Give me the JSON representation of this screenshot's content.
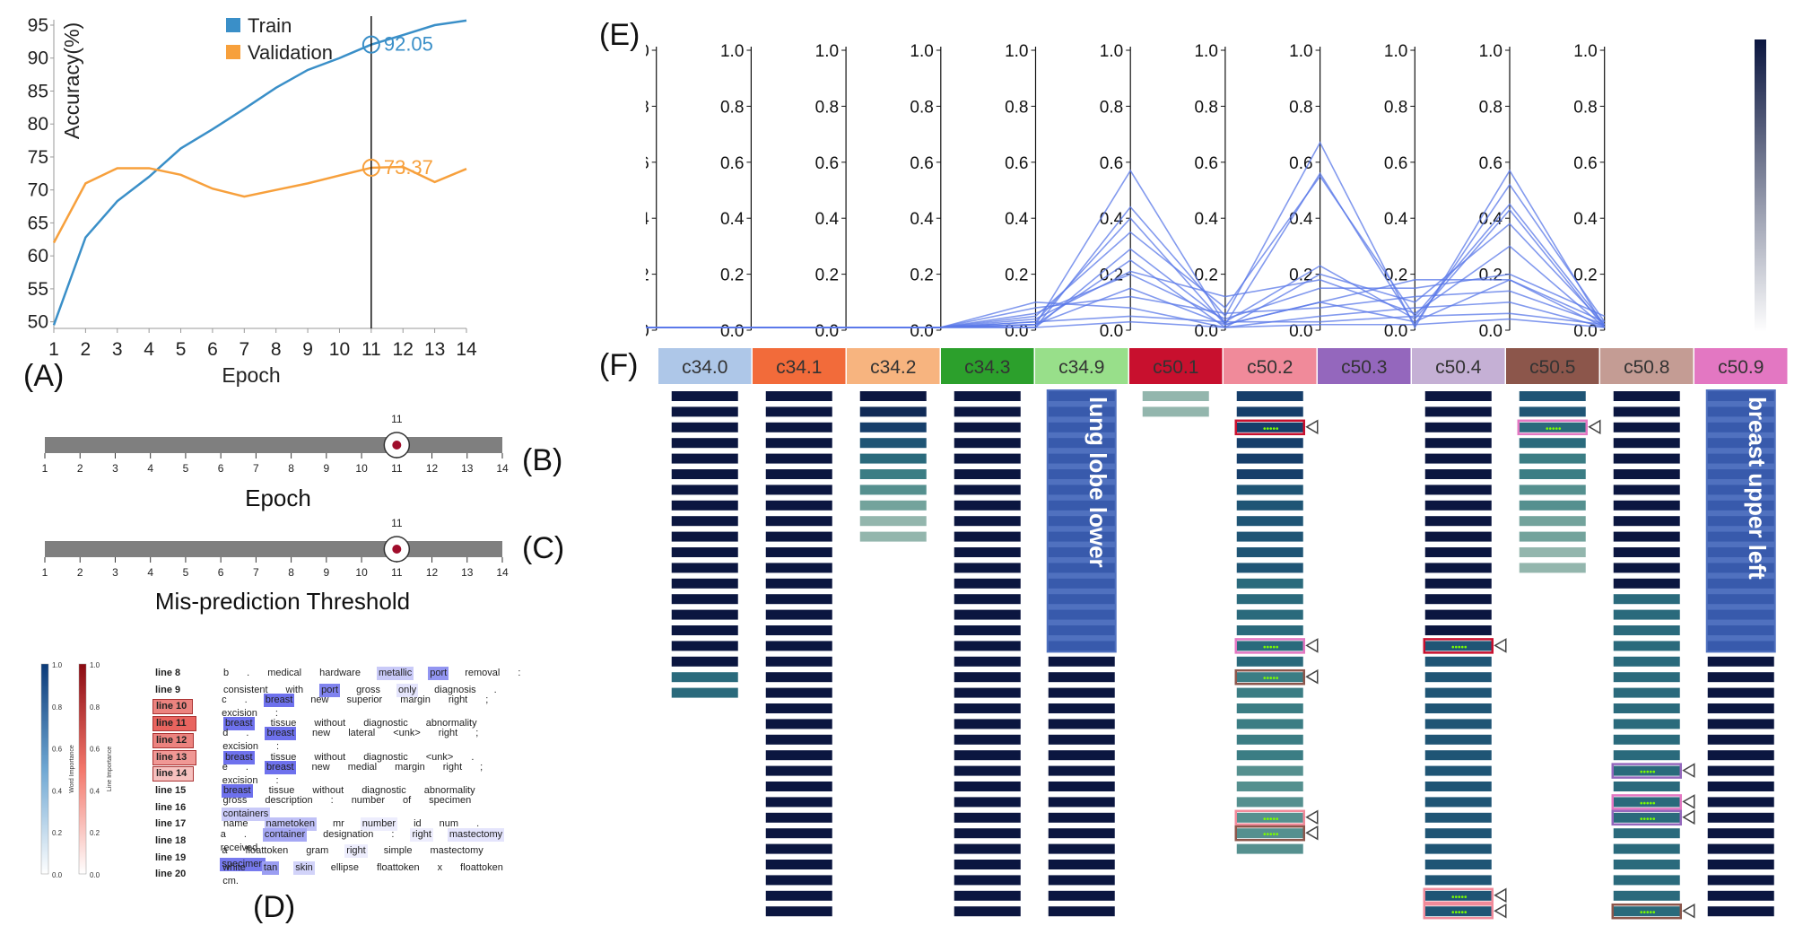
{
  "panel_letters": {
    "A": "(A)",
    "B": "(B)",
    "C": "(C)",
    "D": "(D)",
    "E": "(E)",
    "F": "(F)"
  },
  "chart_data": [
    {
      "type": "line",
      "ylabel": "Accuracy(%)",
      "xlabel": "Epoch",
      "x": [
        1,
        2,
        3,
        4,
        5,
        6,
        7,
        8,
        9,
        10,
        11,
        12,
        13,
        14
      ],
      "xlim": [
        1,
        14
      ],
      "ylim": [
        49,
        95
      ],
      "yticks": [
        50,
        55,
        60,
        65,
        70,
        75,
        80,
        85,
        90,
        95
      ],
      "legend_position": "top-center",
      "series": [
        {
          "name": "Train",
          "color": "#3a8fc8",
          "values": [
            49.5,
            62.8,
            68.3,
            72,
            76.3,
            79.2,
            82.3,
            85.5,
            88.2,
            90,
            92.05,
            93.5,
            95,
            95.7
          ]
        },
        {
          "name": "Validation",
          "color": "#f7a03c",
          "values": [
            62,
            71,
            73.3,
            73.3,
            72.3,
            70.2,
            69,
            70,
            71,
            72.2,
            73.37,
            73.5,
            71.2,
            73.2
          ]
        }
      ],
      "marker": {
        "epoch": 11,
        "train_label": "92.05",
        "validation_label": "73.37"
      }
    },
    {
      "type": "line",
      "chart": "parallel-coordinates",
      "axes": [
        "c34.0",
        "c34.1",
        "c34.2",
        "c34.3",
        "c34.9",
        "c50.1",
        "c50.2",
        "c50.3",
        "c50.4",
        "c50.5",
        "c50.8",
        "c50.9"
      ],
      "ylim": [
        0,
        1
      ],
      "yticks": [
        "0.0",
        "0.2",
        "0.4",
        "0.6",
        "0.8",
        "1.0"
      ],
      "color": "#5a78e8",
      "series": [
        {
          "values": [
            0.01,
            0.01,
            0.01,
            0.01,
            0.01,
            0.02,
            0.57,
            0.02,
            0.1,
            0.03,
            0.18,
            0.01
          ]
        },
        {
          "values": [
            0.01,
            0.01,
            0.01,
            0.01,
            0.01,
            0.01,
            0.44,
            0.05,
            0.67,
            0.01,
            0.57,
            0.01
          ]
        },
        {
          "values": [
            0.01,
            0.01,
            0.01,
            0.01,
            0.01,
            0.03,
            0.4,
            0.02,
            0.56,
            0.02,
            0.52,
            0.03
          ]
        },
        {
          "values": [
            0.01,
            0.01,
            0.01,
            0.01,
            0.01,
            0.05,
            0.35,
            0.08,
            0.55,
            0.05,
            0.45,
            0.02
          ]
        },
        {
          "values": [
            0.01,
            0.01,
            0.01,
            0.01,
            0.01,
            0.01,
            0.29,
            0.03,
            0.23,
            0.04,
            0.43,
            0.01
          ]
        },
        {
          "values": [
            0.01,
            0.01,
            0.01,
            0.01,
            0.01,
            0.02,
            0.25,
            0.01,
            0.2,
            0.1,
            0.38,
            0.02
          ]
        },
        {
          "values": [
            0.01,
            0.01,
            0.01,
            0.01,
            0.01,
            0.04,
            0.21,
            0.12,
            0.18,
            0.06,
            0.3,
            0.01
          ]
        },
        {
          "values": [
            0.01,
            0.01,
            0.01,
            0.01,
            0.01,
            0.06,
            0.2,
            0.04,
            0.15,
            0.15,
            0.2,
            0.05
          ]
        },
        {
          "values": [
            0.01,
            0.01,
            0.01,
            0.01,
            0.01,
            0.02,
            0.15,
            0.02,
            0.1,
            0.18,
            0.18,
            0.03
          ]
        },
        {
          "values": [
            0.01,
            0.01,
            0.01,
            0.01,
            0.01,
            0.08,
            0.12,
            0.06,
            0.08,
            0.12,
            0.14,
            0.02
          ]
        },
        {
          "values": [
            0.01,
            0.01,
            0.01,
            0.01,
            0.01,
            0.1,
            0.08,
            0.01,
            0.05,
            0.08,
            0.1,
            0.01
          ]
        },
        {
          "values": [
            0.01,
            0.01,
            0.01,
            0.01,
            0.01,
            0.03,
            0.05,
            0.03,
            0.03,
            0.05,
            0.06,
            0.02
          ]
        },
        {
          "values": [
            0.01,
            0.01,
            0.01,
            0.01,
            0.01,
            0.01,
            0.03,
            0.01,
            0.02,
            0.02,
            0.04,
            0.01
          ]
        }
      ],
      "colorbar": {
        "from": "#ffffff",
        "to": "#0b1640"
      }
    }
  ],
  "sliders": [
    {
      "label": "Epoch",
      "value": 11,
      "value_label": "11",
      "ticks": [
        "1",
        "2",
        "3",
        "4",
        "5",
        "6",
        "7",
        "8",
        "9",
        "10",
        "11",
        "12",
        "13",
        "14"
      ]
    },
    {
      "label": "Mis-prediction Threshold",
      "value": 11,
      "value_label": "11",
      "ticks": [
        "1",
        "2",
        "3",
        "4",
        "5",
        "6",
        "7",
        "8",
        "9",
        "10",
        "11",
        "12",
        "13",
        "14"
      ]
    }
  ],
  "classes": [
    {
      "name": "c34.0",
      "color": "#aec7e8",
      "count": 20
    },
    {
      "name": "c34.1",
      "color": "#f26b3a",
      "count": 34
    },
    {
      "name": "c34.2",
      "color": "#f7b47f",
      "count": 10
    },
    {
      "name": "c34.3",
      "color": "#2ca02c",
      "count": 34
    },
    {
      "name": "c34.9",
      "color": "#98df8a",
      "count": 34,
      "label": "lung lobe lower"
    },
    {
      "name": "c50.1",
      "color": "#c8102e",
      "count": 2
    },
    {
      "name": "c50.2",
      "color": "#f08a9a",
      "count": 30
    },
    {
      "name": "c50.3",
      "color": "#9467bd",
      "count": 0
    },
    {
      "name": "c50.4",
      "color": "#c5b0d5",
      "count": 34
    },
    {
      "name": "c50.5",
      "color": "#8c564b",
      "count": 12
    },
    {
      "name": "c50.8",
      "color": "#c49c94",
      "count": 34
    },
    {
      "name": "c50.9",
      "color": "#e377c2",
      "count": 34,
      "label": "breast upper left"
    }
  ],
  "doc_lines": [
    {
      "label": "line 8",
      "imp": 0,
      "tokens": [
        [
          "b",
          0
        ],
        [
          ".",
          0
        ],
        [
          "medical",
          0
        ],
        [
          "hardware",
          0
        ],
        [
          "metallic",
          0.3
        ],
        [
          "port",
          0.6
        ],
        [
          "removal",
          0
        ],
        [
          ":",
          0
        ]
      ]
    },
    {
      "label": "line 9",
      "imp": 0,
      "tokens": [
        [
          "consistent",
          0
        ],
        [
          "with",
          0
        ],
        [
          "port",
          0.7
        ],
        [
          "gross",
          0
        ],
        [
          "only",
          0.15
        ],
        [
          "diagnosis",
          0
        ],
        [
          ".",
          0
        ]
      ]
    },
    {
      "label": "line 10",
      "imp": 0.6,
      "tokens": [
        [
          "c",
          0
        ],
        [
          ".",
          0
        ],
        [
          "breast",
          0.8
        ],
        [
          "new",
          0
        ],
        [
          "superior",
          0
        ],
        [
          "margin",
          0
        ],
        [
          "right",
          0
        ],
        [
          ";",
          0
        ],
        [
          "excision",
          0
        ],
        [
          ":",
          0
        ]
      ]
    },
    {
      "label": "line 11",
      "imp": 0.75,
      "tokens": [
        [
          "breast",
          0.8
        ],
        [
          "tissue",
          0
        ],
        [
          "without",
          0
        ],
        [
          "diagnostic",
          0
        ],
        [
          "abnormality",
          0
        ]
      ]
    },
    {
      "label": "line 12",
      "imp": 0.6,
      "tokens": [
        [
          "d",
          0
        ],
        [
          ".",
          0
        ],
        [
          "breast",
          0.8
        ],
        [
          "new",
          0
        ],
        [
          "lateral",
          0
        ],
        [
          "<unk>",
          0
        ],
        [
          "right",
          0
        ],
        [
          ";",
          0
        ],
        [
          "excision",
          0
        ],
        [
          ":",
          0
        ]
      ]
    },
    {
      "label": "line 13",
      "imp": 0.5,
      "tokens": [
        [
          "breast",
          0.8
        ],
        [
          "tissue",
          0
        ],
        [
          "without",
          0
        ],
        [
          "diagnostic",
          0
        ],
        [
          "<unk>",
          0
        ],
        [
          ".",
          0
        ]
      ]
    },
    {
      "label": "line 14",
      "imp": 0.3,
      "tokens": [
        [
          "e",
          0
        ],
        [
          ".",
          0
        ],
        [
          "breast",
          0.8
        ],
        [
          "new",
          0
        ],
        [
          "medial",
          0
        ],
        [
          "margin",
          0
        ],
        [
          "right",
          0
        ],
        [
          ";",
          0
        ],
        [
          "excision",
          0
        ],
        [
          ":",
          0
        ]
      ]
    },
    {
      "label": "line 15",
      "imp": 0,
      "tokens": [
        [
          "breast",
          0.8
        ],
        [
          "tissue",
          0
        ],
        [
          "without",
          0
        ],
        [
          "diagnostic",
          0
        ],
        [
          "abnormality",
          0
        ]
      ]
    },
    {
      "label": "line 16",
      "imp": 0,
      "tokens": [
        [
          "gross",
          0
        ],
        [
          "description",
          0
        ],
        [
          ":",
          0
        ],
        [
          "number",
          0
        ],
        [
          "of",
          0
        ],
        [
          "specimen",
          0
        ],
        [
          "containers",
          0.3
        ]
      ]
    },
    {
      "label": "line 17",
      "imp": 0,
      "tokens": [
        [
          "name",
          0
        ],
        [
          "nametoken",
          0.35
        ],
        [
          "mr",
          0
        ],
        [
          "number",
          0.1
        ],
        [
          "id",
          0
        ],
        [
          "num",
          0
        ],
        [
          ".",
          0
        ]
      ]
    },
    {
      "label": "line 18",
      "imp": 0,
      "tokens": [
        [
          "a",
          0
        ],
        [
          ".",
          0
        ],
        [
          "container",
          0.5
        ],
        [
          "designation",
          0
        ],
        [
          ":",
          0
        ],
        [
          "right",
          0.1
        ],
        [
          "mastectomy",
          0.15
        ],
        [
          "received",
          0
        ]
      ]
    },
    {
      "label": "line 19",
      "imp": 0,
      "tokens": [
        [
          "a",
          0
        ],
        [
          "floattoken",
          0
        ],
        [
          "gram",
          0
        ],
        [
          "right",
          0.1
        ],
        [
          "simple",
          0
        ],
        [
          "mastectomy",
          0
        ],
        [
          "specimen",
          0.75
        ]
      ]
    },
    {
      "label": "line 20",
      "imp": 0,
      "tokens": [
        [
          "white",
          0
        ],
        [
          "tan",
          0.55
        ],
        [
          "skin",
          0.25
        ],
        [
          "ellipse",
          0
        ],
        [
          "floattoken",
          0
        ],
        [
          "x",
          0
        ],
        [
          "floattoken",
          0
        ],
        [
          "cm.",
          0
        ]
      ]
    }
  ],
  "colorbar_labels": {
    "word_title": "Word Importance",
    "line_title": "Line Importance",
    "word_ticks": [
      "1.0",
      "0.8",
      "0.6",
      "0.4",
      "0.2",
      "0.0"
    ],
    "line_ticks": [
      "1.0",
      "0.8",
      "0.6",
      "0.4",
      "0.2",
      "0.0"
    ]
  }
}
